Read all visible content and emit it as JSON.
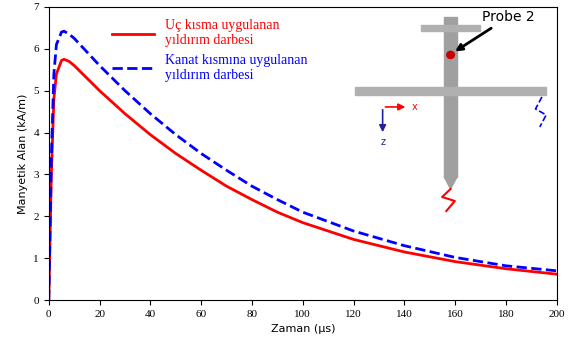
{
  "chart_data": {
    "type": "line",
    "xlabel": "Zaman (µs)",
    "ylabel": "Manyetik Alan (kA/m)",
    "xlim": [
      0,
      200
    ],
    "xticks": [
      0,
      20,
      40,
      60,
      80,
      100,
      120,
      140,
      160,
      180,
      200
    ],
    "ylim": [
      0,
      7
    ],
    "yticks": [
      0,
      1,
      2,
      3,
      4,
      5,
      6,
      7
    ],
    "grid": false,
    "legend": "upper left",
    "x": [
      0,
      1,
      2,
      3,
      5,
      6,
      8,
      10,
      20,
      30,
      40,
      50,
      60,
      70,
      80,
      90,
      100,
      120,
      140,
      160,
      180,
      200
    ],
    "series": [
      {
        "name": "Uç kısma uygulanan\nyıldırım darbesi",
        "color": "#ff0000",
        "line_style": "solid",
        "values": [
          0,
          3.0,
          4.8,
          5.4,
          5.72,
          5.75,
          5.7,
          5.6,
          5.0,
          4.45,
          3.95,
          3.5,
          3.1,
          2.72,
          2.4,
          2.1,
          1.85,
          1.45,
          1.15,
          0.92,
          0.75,
          0.62
        ]
      },
      {
        "name": "Kanat kısmına uygulanan\nyıldırım darbesi",
        "color": "#0000ff",
        "line_style": "dashed",
        "values": [
          0,
          3.4,
          5.4,
          6.1,
          6.4,
          6.42,
          6.35,
          6.25,
          5.6,
          5.0,
          4.45,
          3.95,
          3.5,
          3.1,
          2.72,
          2.4,
          2.1,
          1.65,
          1.3,
          1.02,
          0.82,
          0.7
        ]
      }
    ],
    "annotations": {
      "probe": "Probe 2",
      "axis_x": "x",
      "axis_z": "z"
    }
  }
}
